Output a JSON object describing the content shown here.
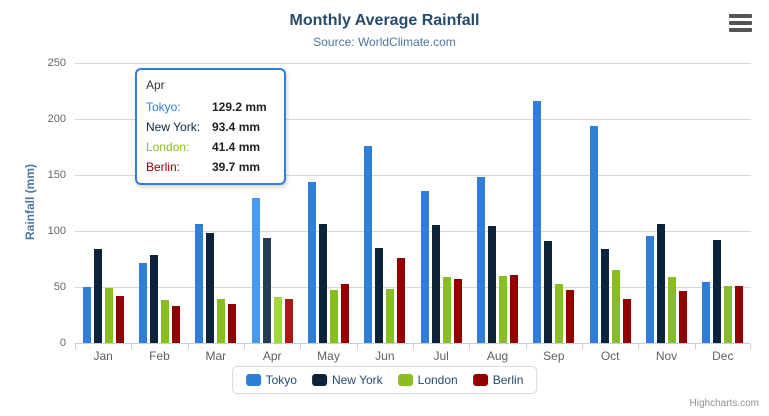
{
  "header": {
    "title": "Monthly Average Rainfall",
    "subtitle": "Source: WorldClimate.com"
  },
  "chart_data": {
    "type": "bar",
    "title": "Monthly Average Rainfall",
    "subtitle": "Source: WorldClimate.com",
    "xlabel": "",
    "ylabel": "Rainfall (mm)",
    "ylim": [
      0,
      250
    ],
    "yticks": [
      0,
      50,
      100,
      150,
      200,
      250
    ],
    "grid": true,
    "legend_position": "bottom",
    "value_suffix": " mm",
    "categories": [
      "Jan",
      "Feb",
      "Mar",
      "Apr",
      "May",
      "Jun",
      "Jul",
      "Aug",
      "Sep",
      "Oct",
      "Nov",
      "Dec"
    ],
    "series": [
      {
        "name": "Tokyo",
        "color": "#2f7ed8",
        "values": [
          49.9,
          71.5,
          106.4,
          129.2,
          144.0,
          176.0,
          135.6,
          148.5,
          216.4,
          194.1,
          95.6,
          54.4
        ]
      },
      {
        "name": "New York",
        "color": "#0d233a",
        "values": [
          83.6,
          78.8,
          98.5,
          93.4,
          106.0,
          84.5,
          105.0,
          104.3,
          91.2,
          83.5,
          106.6,
          92.3
        ]
      },
      {
        "name": "London",
        "color": "#8bbc21",
        "values": [
          48.9,
          38.8,
          39.3,
          41.4,
          47.0,
          48.3,
          59.0,
          59.6,
          52.4,
          65.2,
          59.3,
          51.2
        ]
      },
      {
        "name": "Berlin",
        "color": "#910000",
        "values": [
          42.4,
          33.2,
          34.5,
          39.7,
          52.6,
          75.5,
          57.4,
          60.4,
          47.6,
          39.1,
          46.8,
          51.1
        ]
      }
    ]
  },
  "tooltip": {
    "header": "Apr",
    "hover_index": 3,
    "rows": [
      {
        "name": "Tokyo:",
        "value": "129.2 mm",
        "color": "#2f7ed8"
      },
      {
        "name": "New York:",
        "value": "93.4 mm",
        "color": "#0d233a"
      },
      {
        "name": "London:",
        "value": "41.4 mm",
        "color": "#8bbc21"
      },
      {
        "name": "Berlin:",
        "value": "39.7 mm",
        "color": "#910000"
      }
    ]
  },
  "legend": {
    "items": [
      "Tokyo",
      "New York",
      "London",
      "Berlin"
    ]
  },
  "credits": {
    "label": "Highcharts.com"
  },
  "colors": {
    "title": "#274b6d",
    "subtitle": "#4d759e",
    "axis_labels": "#666666",
    "gridline": "#d8d8d8",
    "axis_line": "#c0d0e0",
    "tooltip_border": "#2f7ed8"
  },
  "icons": {
    "export_menu": "hamburger-icon"
  }
}
